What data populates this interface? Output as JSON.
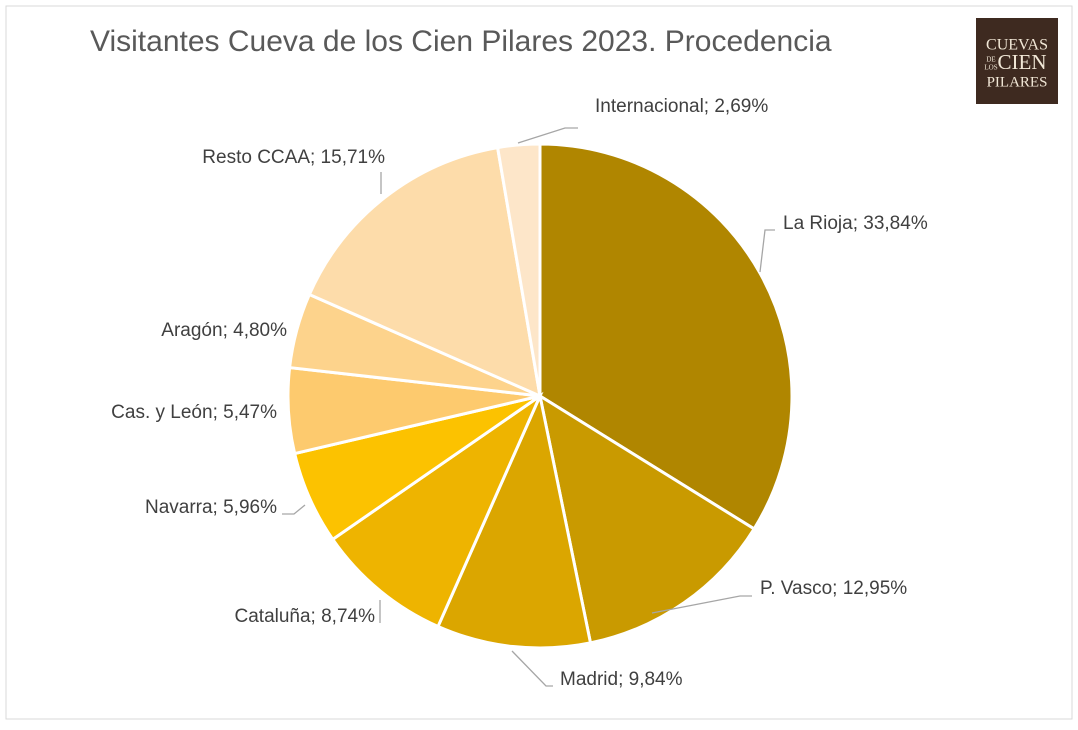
{
  "chart_data": {
    "type": "pie",
    "title": "Visitantes Cueva de los Cien Pilares 2023. Procedencia",
    "values": [
      33.84,
      12.95,
      9.84,
      8.74,
      5.96,
      5.47,
      4.8,
      15.71,
      2.69
    ],
    "value_labels": [
      "La Rioja; 33,84%",
      "P. Vasco; 12,95%",
      "Madrid; 9,84%",
      "Cataluña; 8,74%",
      "Navarra; 5,96%",
      "Cas. y León; 5,47%",
      "Aragón; 4,80%",
      "Resto CCAA; 15,71%",
      "Internacional; 2,69%"
    ],
    "colors": [
      "#b08600",
      "#c99a00",
      "#dba600",
      "#eeb400",
      "#fcc200",
      "#fdca6e",
      "#fdd38c",
      "#fddcaa",
      "#fde6c9"
    ]
  },
  "logo": {
    "top": "CUEVAS",
    "small1": "DE",
    "small2": "LOS",
    "middle": "CIEN",
    "bottom": "PILARES"
  }
}
